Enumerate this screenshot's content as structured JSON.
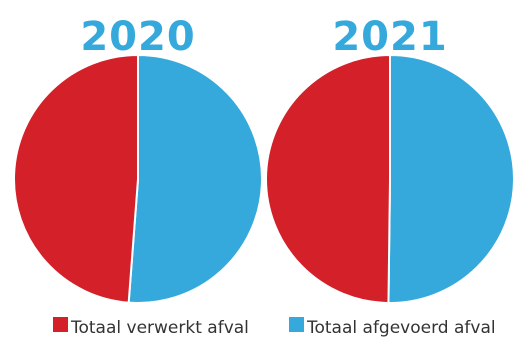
{
  "colors": {
    "verwerkt": "#d32029",
    "afgevoerd": "#35a9db",
    "title": "#35a9db",
    "legend_text": "#333333",
    "separator": "#ffffff"
  },
  "legend": [
    {
      "label": "Totaal verwerkt afval",
      "color": "#d32029"
    },
    {
      "label": "Totaal afgevoerd afval",
      "color": "#35a9db"
    }
  ],
  "chart_data": [
    {
      "type": "pie",
      "title": "2020",
      "categories": [
        "Totaal verwerkt afval",
        "Totaal afgevoerd afval"
      ],
      "values": [
        48.8,
        51.2
      ],
      "unit": "%"
    },
    {
      "type": "pie",
      "title": "2021",
      "categories": [
        "Totaal verwerkt afval",
        "Totaal afgevoerd afval"
      ],
      "values": [
        49.8,
        50.2
      ],
      "unit": "%"
    }
  ]
}
